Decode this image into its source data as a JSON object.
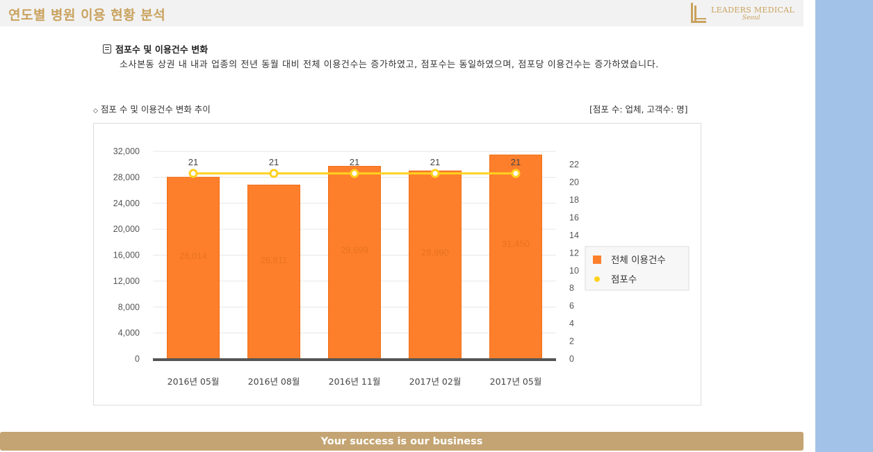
{
  "header": {
    "title": "연도별 병원 이용 현황 분석",
    "logo_text": "LEADERS MEDICAL",
    "logo_sub": "Seoul"
  },
  "section": {
    "heading": "점포수 및 이용건수 변화",
    "body": "소사본동 상권 내 내과 업종의 전년 동월 대비 전체 이용건수는 증가하였고, 점포수는 동일하였으며, 점포당 이용건수는 증가하였습니다."
  },
  "chart_caption": "점포 수 및 이용건수 변화 추이",
  "unit_note": "[점포 수: 업체, 고객수: 명]",
  "footer": {
    "tagline": "Your success is our business"
  },
  "colors": {
    "bar": "#fd7f2c",
    "line": "#ffd21e",
    "gold": "#c9a25e",
    "axis": "#555555"
  },
  "chart_data": {
    "type": "bar",
    "categories": [
      "2016년 05월",
      "2016년 08월",
      "2016년 11월",
      "2017년 02월",
      "2017년 05월"
    ],
    "series": [
      {
        "name": "전체 이용건수",
        "type": "bar",
        "axis": "left",
        "values": [
          28014,
          26811,
          29699,
          28990,
          31450
        ],
        "labels": [
          "28,014",
          "26,811",
          "29,699",
          "28,990",
          "31,450"
        ]
      },
      {
        "name": "점포수",
        "type": "line",
        "axis": "right",
        "values": [
          21,
          21,
          21,
          21,
          21
        ],
        "labels": [
          "21",
          "21",
          "21",
          "21",
          "21"
        ]
      }
    ],
    "left_axis": {
      "min": 0,
      "max": 32000,
      "ticks": [
        "0",
        "4,000",
        "8,000",
        "12,000",
        "16,000",
        "20,000",
        "24,000",
        "28,000",
        "32,000"
      ],
      "tick_values": [
        0,
        4000,
        8000,
        12000,
        16000,
        20000,
        24000,
        28000,
        32000
      ]
    },
    "right_axis": {
      "min": 0,
      "max": 23.5,
      "ticks": [
        "0",
        "2",
        "4",
        "6",
        "8",
        "10",
        "12",
        "14",
        "16",
        "18",
        "20",
        "22"
      ],
      "tick_values": [
        0,
        2,
        4,
        6,
        8,
        10,
        12,
        14,
        16,
        18,
        20,
        22
      ]
    },
    "grid": true,
    "legend_position": "right"
  }
}
